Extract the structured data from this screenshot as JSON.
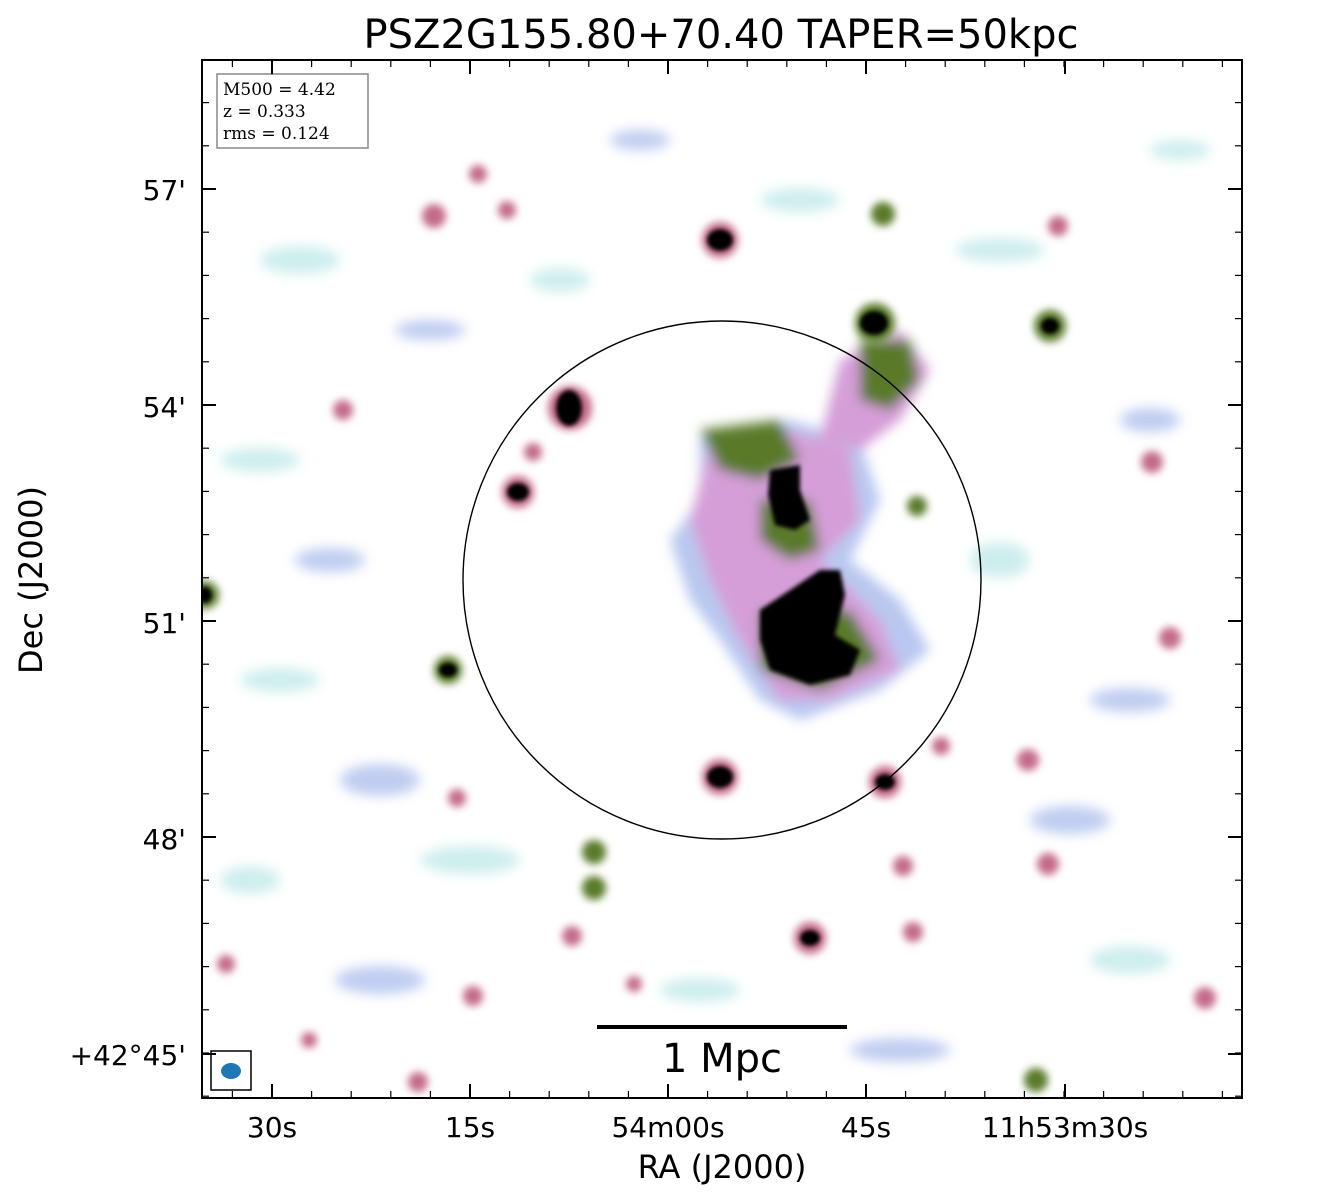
{
  "title": "PSZ2G155.80+70.40 TAPER=50kpc",
  "info_box": {
    "mass_line": "M500 = 4.42",
    "redshift_line": "z = 0.333",
    "rms_line": "rms = 0.124"
  },
  "axes": {
    "xlabel": "RA (J2000)",
    "ylabel": "Dec (J2000)",
    "x_ticks": [
      "30s",
      "15s",
      "54m00s",
      "45s",
      "11h53m30s"
    ],
    "y_ticks": [
      "57'",
      "54'",
      "51'",
      "48'",
      "+42°45'"
    ]
  },
  "scale_bar": {
    "label": "1 Mpc"
  },
  "colors": {
    "faint": "#c9ecec",
    "low": "#b9c8f0",
    "mid": "#d59ed8",
    "high": "#c46a8a",
    "strong": "#5a7a2a",
    "peak": "#000000",
    "beam": "#1f77b4"
  }
}
